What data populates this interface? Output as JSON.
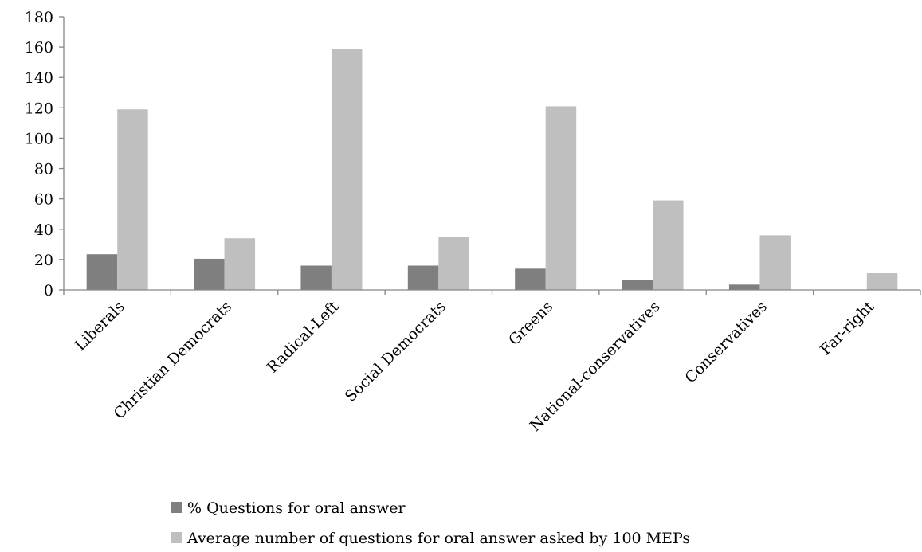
{
  "chart_data": {
    "type": "bar",
    "title": "",
    "xlabel": "",
    "ylabel": "",
    "ylim": [
      0,
      180
    ],
    "yticks": [
      0,
      20,
      40,
      60,
      80,
      100,
      120,
      140,
      160,
      180
    ],
    "grid": false,
    "legend_position": "bottom",
    "categories": [
      "Liberals",
      "Christian Democrats",
      "Radical-Left",
      "Social Democrats",
      "Greens",
      "National-conservatives",
      "Conservatives",
      "Far-right"
    ],
    "series": [
      {
        "name": "% Questions for oral answer",
        "color": "#7f7f7f",
        "values": [
          23.5,
          20.5,
          16,
          16,
          14,
          6.5,
          3.5,
          0
        ]
      },
      {
        "name": "Average number of questions for oral answer asked by 100 MEPs",
        "color": "#bfbfbf",
        "values": [
          119,
          34,
          159,
          35,
          121,
          59,
          36,
          11
        ]
      }
    ]
  }
}
